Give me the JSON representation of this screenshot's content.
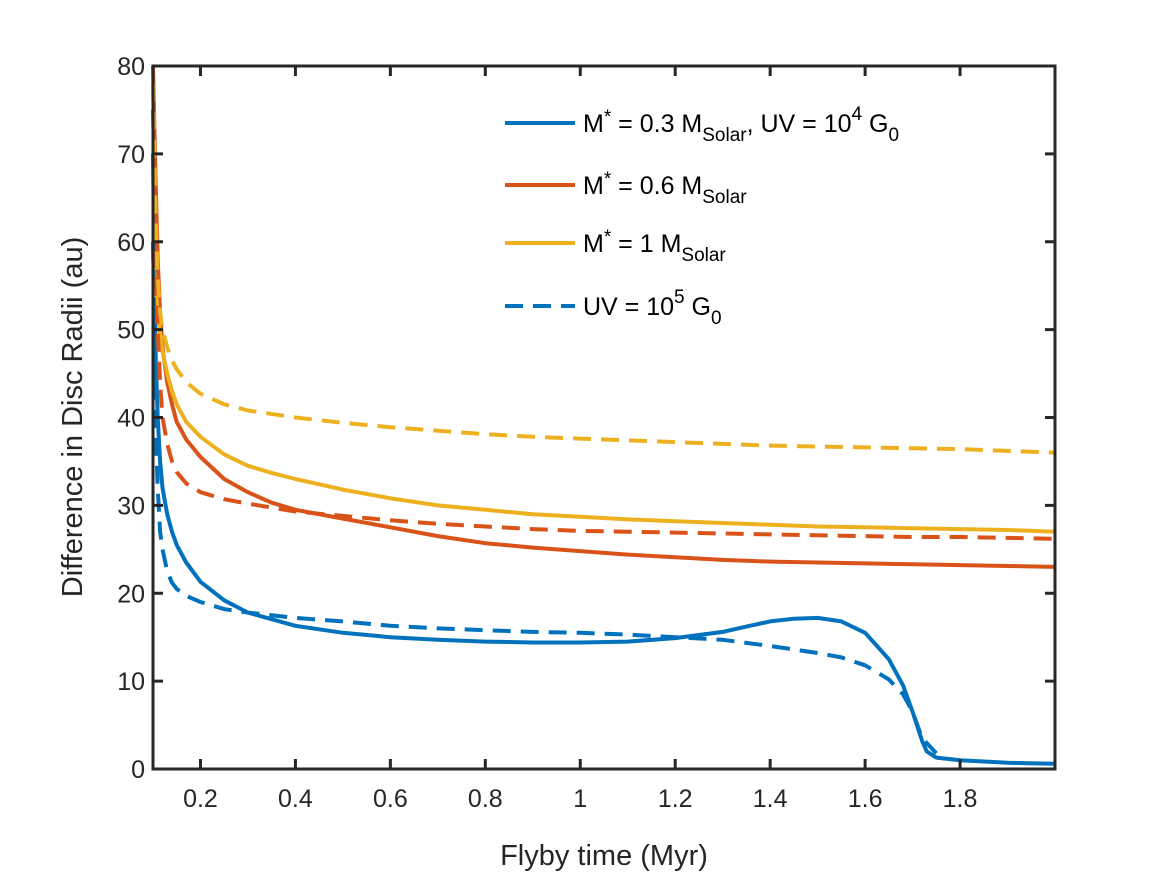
{
  "chart_data": {
    "type": "line",
    "title": "",
    "xlabel": "Flyby time (Myr)",
    "ylabel": "Difference in Disc Radii (au)",
    "xlim": [
      0.1,
      2.0
    ],
    "ylim": [
      0,
      80
    ],
    "xticks": [
      0.2,
      0.4,
      0.6,
      0.8,
      1,
      1.2,
      1.4,
      1.6,
      1.8
    ],
    "xtick_labels": [
      "0.2",
      "0.4",
      "0.6",
      "0.8",
      "1",
      "1.2",
      "1.4",
      "1.6",
      "1.8"
    ],
    "yticks": [
      0,
      10,
      20,
      30,
      40,
      50,
      60,
      70,
      80
    ],
    "ytick_labels": [
      "0",
      "10",
      "20",
      "30",
      "40",
      "50",
      "60",
      "70",
      "80"
    ],
    "grid": false,
    "legend_position": "top-right",
    "legend": [
      {
        "series": "blue-solid",
        "label_main": "M",
        "star": "*",
        "eq": " = 0.3 M",
        "sub": "Solar",
        "tail": ", UV = 10",
        "sup": "4",
        "tail2": " G",
        "sub2": "0"
      },
      {
        "series": "red-solid",
        "label_main": "M",
        "star": "*",
        "eq": " = 0.6 M",
        "sub": "Solar"
      },
      {
        "series": "yellow-solid",
        "label_main": "M",
        "star": "*",
        "eq": " = 1 M",
        "sub": "Solar"
      },
      {
        "series": "blue-dashed",
        "label_main": "UV = 10",
        "sup": "5",
        "tail2": " G",
        "sub2": "0"
      }
    ],
    "series": [
      {
        "name": "M* = 0.3 MSolar, UV = 10^4 G0",
        "id": "blue-solid",
        "color": "#0072BD",
        "dash": "solid",
        "x": [
          0.1,
          0.105,
          0.11,
          0.115,
          0.12,
          0.13,
          0.14,
          0.15,
          0.17,
          0.2,
          0.25,
          0.3,
          0.4,
          0.5,
          0.6,
          0.7,
          0.8,
          0.9,
          1.0,
          1.1,
          1.2,
          1.3,
          1.35,
          1.4,
          1.45,
          1.5,
          1.55,
          1.6,
          1.65,
          1.68,
          1.7,
          1.72,
          1.73,
          1.75,
          1.8,
          1.9,
          2.0
        ],
        "y": [
          70,
          48,
          40,
          35,
          32,
          29,
          27,
          25.5,
          23.5,
          21.3,
          19.2,
          17.8,
          16.3,
          15.5,
          15.0,
          14.7,
          14.5,
          14.4,
          14.4,
          14.5,
          14.9,
          15.6,
          16.2,
          16.8,
          17.1,
          17.2,
          16.8,
          15.5,
          12.5,
          9.5,
          6.5,
          3.2,
          2.0,
          1.3,
          1.0,
          0.7,
          0.6
        ]
      },
      {
        "name": "M* = 0.6 MSolar",
        "id": "red-solid",
        "color": "#D95319",
        "dash": "solid",
        "x": [
          0.1,
          0.105,
          0.11,
          0.115,
          0.12,
          0.13,
          0.14,
          0.15,
          0.17,
          0.2,
          0.25,
          0.3,
          0.35,
          0.4,
          0.5,
          0.6,
          0.7,
          0.8,
          0.9,
          1.0,
          1.1,
          1.2,
          1.3,
          1.4,
          1.5,
          1.6,
          1.7,
          1.8,
          1.9,
          2.0
        ],
        "y": [
          80,
          68,
          58,
          52,
          48,
          44,
          41.5,
          39.5,
          37.5,
          35.5,
          33,
          31.5,
          30.3,
          29.5,
          28.5,
          27.5,
          26.5,
          25.7,
          25.2,
          24.8,
          24.4,
          24.1,
          23.8,
          23.6,
          23.5,
          23.4,
          23.3,
          23.2,
          23.1,
          23.0
        ]
      },
      {
        "name": "M* = 1 MSolar",
        "id": "yellow-solid",
        "color": "#EDB120",
        "dash": "solid",
        "x": [
          0.1,
          0.105,
          0.11,
          0.115,
          0.12,
          0.13,
          0.14,
          0.15,
          0.17,
          0.2,
          0.25,
          0.3,
          0.35,
          0.4,
          0.5,
          0.6,
          0.7,
          0.8,
          0.9,
          1.0,
          1.1,
          1.2,
          1.3,
          1.4,
          1.5,
          1.6,
          1.7,
          1.8,
          1.9,
          2.0
        ],
        "y": [
          58,
          55,
          52,
          49.5,
          47.5,
          45,
          43,
          41.5,
          39.5,
          37.8,
          35.8,
          34.5,
          33.7,
          33.0,
          31.8,
          30.8,
          30.0,
          29.5,
          29.0,
          28.7,
          28.4,
          28.2,
          28.0,
          27.8,
          27.6,
          27.5,
          27.4,
          27.3,
          27.2,
          27.0
        ]
      },
      {
        "name": "UV = 10^5 G0 (0.3 MSolar)",
        "id": "blue-dashed",
        "color": "#0072BD",
        "dash": "dashed",
        "x": [
          0.1,
          0.105,
          0.11,
          0.115,
          0.12,
          0.13,
          0.14,
          0.15,
          0.17,
          0.2,
          0.25,
          0.3,
          0.4,
          0.5,
          0.6,
          0.7,
          0.8,
          0.9,
          1.0,
          1.1,
          1.2,
          1.3,
          1.4,
          1.5,
          1.55,
          1.6,
          1.65,
          1.68,
          1.7,
          1.72,
          1.75
        ],
        "y": [
          60,
          40,
          32,
          27,
          25,
          22.5,
          21.2,
          20.5,
          19.7,
          19.0,
          18.2,
          17.8,
          17.2,
          16.8,
          16.3,
          16.0,
          15.8,
          15.6,
          15.5,
          15.3,
          15.0,
          14.7,
          14.0,
          13.2,
          12.7,
          11.8,
          10.2,
          8.5,
          6.5,
          3.5,
          1.8
        ]
      },
      {
        "name": "UV = 10^5 G0 (0.6 MSolar)",
        "id": "red-dashed",
        "color": "#D95319",
        "dash": "dashed",
        "x": [
          0.1,
          0.105,
          0.11,
          0.115,
          0.12,
          0.13,
          0.14,
          0.15,
          0.17,
          0.2,
          0.25,
          0.3,
          0.4,
          0.5,
          0.6,
          0.7,
          0.8,
          0.9,
          1.0,
          1.1,
          1.2,
          1.3,
          1.4,
          1.5,
          1.6,
          1.7,
          1.8,
          1.9,
          2.0
        ],
        "y": [
          75,
          60,
          50,
          44,
          40,
          37,
          35,
          33.8,
          32.5,
          31.5,
          30.7,
          30.2,
          29.3,
          28.8,
          28.3,
          27.9,
          27.6,
          27.3,
          27.1,
          27.0,
          26.9,
          26.8,
          26.7,
          26.6,
          26.5,
          26.4,
          26.4,
          26.3,
          26.2
        ]
      },
      {
        "name": "UV = 10^5 G0 (1 MSolar)",
        "id": "yellow-dashed",
        "color": "#EDB120",
        "dash": "dashed",
        "x": [
          0.1,
          0.105,
          0.11,
          0.115,
          0.12,
          0.13,
          0.14,
          0.15,
          0.17,
          0.2,
          0.25,
          0.3,
          0.4,
          0.5,
          0.6,
          0.7,
          0.8,
          0.9,
          1.0,
          1.1,
          1.2,
          1.3,
          1.4,
          1.5,
          1.6,
          1.7,
          1.8,
          1.9,
          2.0
        ],
        "y": [
          78,
          64,
          56,
          52,
          50,
          48,
          46.5,
          45.5,
          44,
          42.7,
          41.5,
          40.8,
          40.0,
          39.4,
          38.9,
          38.5,
          38.1,
          37.8,
          37.6,
          37.4,
          37.2,
          37.0,
          36.8,
          36.7,
          36.6,
          36.5,
          36.4,
          36.2,
          36.0
        ]
      }
    ]
  }
}
